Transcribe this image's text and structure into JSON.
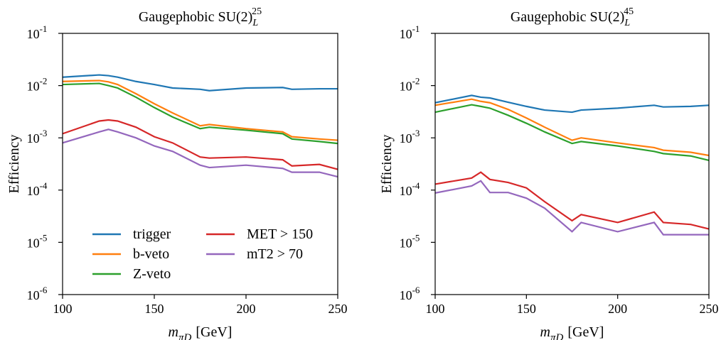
{
  "chart_data": [
    {
      "type": "line",
      "title": "Gaugephobic SU(2)",
      "title_sub": "L",
      "title_sup": "25",
      "ylabel": "Efficiency",
      "xlabel": "m",
      "xlabel_sub": "πD",
      "xlabel_unit": "[GeV]",
      "log_y": true,
      "legend": "lower left",
      "legend_columns": 2,
      "xlim": [
        100,
        250
      ],
      "xticks": [
        100,
        150,
        200,
        250
      ],
      "ylim": [
        1e-06,
        0.1
      ],
      "yticks": [
        {
          "value": 1e-06,
          "label": "10",
          "exp": "-6"
        },
        {
          "value": 1e-05,
          "label": "10",
          "exp": "-5"
        },
        {
          "value": 0.0001,
          "label": "10",
          "exp": "-4"
        },
        {
          "value": 0.001,
          "label": "10",
          "exp": "-3"
        },
        {
          "value": 0.01,
          "label": "10",
          "exp": "-2"
        },
        {
          "value": 0.1,
          "label": "10",
          "exp": "-1"
        }
      ],
      "x": [
        100,
        120,
        125,
        130,
        140,
        150,
        160,
        175,
        180,
        200,
        220,
        225,
        240,
        250
      ],
      "series": [
        {
          "name": "trigger",
          "color": "#1f77b4",
          "values": [
            0.0145,
            0.016,
            0.0155,
            0.0145,
            0.012,
            0.0105,
            0.009,
            0.0085,
            0.008,
            0.009,
            0.0092,
            0.0085,
            0.0087,
            0.0087
          ]
        },
        {
          "name": "b-veto",
          "color": "#ff7f0e",
          "values": [
            0.012,
            0.0125,
            0.0118,
            0.0105,
            0.007,
            0.0045,
            0.003,
            0.0017,
            0.0018,
            0.0015,
            0.0013,
            0.00105,
            0.00095,
            0.0009
          ]
        },
        {
          "name": "Z-veto",
          "color": "#2ca02c",
          "values": [
            0.0105,
            0.011,
            0.01,
            0.009,
            0.006,
            0.0038,
            0.0025,
            0.0015,
            0.0016,
            0.0014,
            0.0012,
            0.00095,
            0.00085,
            0.00078
          ]
        },
        {
          "name": "MET > 150",
          "color": "#d62728",
          "values": [
            0.0012,
            0.0021,
            0.0022,
            0.0021,
            0.0016,
            0.00105,
            0.0008,
            0.00043,
            0.00041,
            0.00043,
            0.00038,
            0.00029,
            0.00031,
            0.00025
          ]
        },
        {
          "name": "mT2 > 70",
          "color": "#9467bd",
          "values": [
            0.0008,
            0.0013,
            0.00145,
            0.0013,
            0.001,
            0.0007,
            0.00055,
            0.0003,
            0.00027,
            0.0003,
            0.00026,
            0.00022,
            0.00022,
            0.00018
          ]
        }
      ]
    },
    {
      "type": "line",
      "title": "Gaugephobic SU(2)",
      "title_sub": "L",
      "title_sup": "45",
      "ylabel": "Efficiency",
      "xlabel": "m",
      "xlabel_sub": "πD",
      "xlabel_unit": "[GeV]",
      "log_y": true,
      "xlim": [
        100,
        250
      ],
      "xticks": [
        100,
        150,
        200,
        250
      ],
      "ylim": [
        1e-06,
        0.1
      ],
      "yticks": [
        {
          "value": 1e-06,
          "label": "10",
          "exp": "-6"
        },
        {
          "value": 1e-05,
          "label": "10",
          "exp": "-5"
        },
        {
          "value": 0.0001,
          "label": "10",
          "exp": "-4"
        },
        {
          "value": 0.001,
          "label": "10",
          "exp": "-3"
        },
        {
          "value": 0.01,
          "label": "10",
          "exp": "-2"
        },
        {
          "value": 0.1,
          "label": "10",
          "exp": "-1"
        }
      ],
      "x": [
        100,
        120,
        125,
        130,
        140,
        150,
        160,
        175,
        180,
        200,
        220,
        225,
        240,
        250
      ],
      "series": [
        {
          "name": "trigger",
          "color": "#1f77b4",
          "values": [
            0.0047,
            0.0065,
            0.006,
            0.0058,
            0.0048,
            0.004,
            0.0034,
            0.0031,
            0.0034,
            0.0037,
            0.0042,
            0.0039,
            0.004,
            0.0042
          ]
        },
        {
          "name": "b-veto",
          "color": "#ff7f0e",
          "values": [
            0.0042,
            0.0055,
            0.005,
            0.0047,
            0.0035,
            0.0024,
            0.0016,
            0.0009,
            0.001,
            0.0008,
            0.00065,
            0.00058,
            0.00053,
            0.00046
          ]
        },
        {
          "name": "Z-veto",
          "color": "#2ca02c",
          "values": [
            0.0031,
            0.0043,
            0.004,
            0.0037,
            0.0027,
            0.0019,
            0.0013,
            0.00078,
            0.00085,
            0.0007,
            0.00055,
            0.0005,
            0.00045,
            0.00037
          ]
        },
        {
          "name": "MET > 150",
          "color": "#d62728",
          "values": [
            0.00013,
            0.00017,
            0.00022,
            0.00016,
            0.00014,
            0.00011,
            6e-05,
            2.6e-05,
            3.4e-05,
            2.4e-05,
            3.8e-05,
            2.4e-05,
            2.2e-05,
            1.8e-05
          ]
        },
        {
          "name": "mT2 > 70",
          "color": "#9467bd",
          "values": [
            8.8e-05,
            0.00012,
            0.00015,
            9e-05,
            9e-05,
            7e-05,
            4.5e-05,
            1.6e-05,
            2.4e-05,
            1.6e-05,
            2.4e-05,
            1.4e-05,
            1.4e-05,
            1.4e-05
          ]
        }
      ]
    }
  ]
}
